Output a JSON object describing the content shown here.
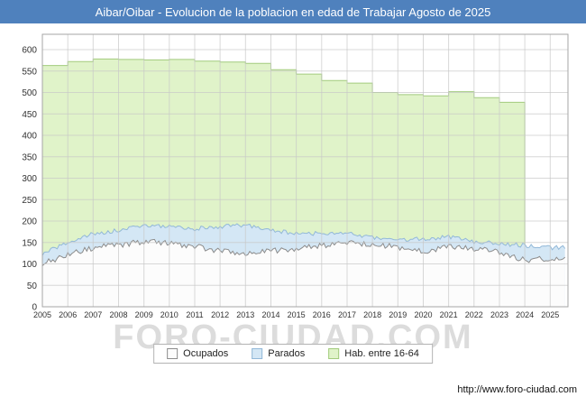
{
  "title_bar": {
    "text": "Aibar/Oibar - Evolucion de la poblacion en edad de Trabajar Agosto de 2025",
    "bg_color": "#4f81bd",
    "text_color": "#ffffff"
  },
  "watermark": "FORO-CIUDAD.COM",
  "footer": {
    "url": "http://www.foro-ciudad.com"
  },
  "legend": [
    {
      "label": "Ocupados",
      "fill": "#fcfcfc",
      "stroke": "#8c8c8c"
    },
    {
      "label": "Parados",
      "fill": "#d4e7f5",
      "stroke": "#92b8d8"
    },
    {
      "label": "Hab. entre 16-64",
      "fill": "#e0f3c9",
      "stroke": "#a2cb7d"
    }
  ],
  "chart_data": {
    "type": "area",
    "title": "Aibar/Oibar - Evolucion de la poblacion en edad de Trabajar Agosto de 2025",
    "xlabel": "",
    "ylabel": "",
    "xlim": [
      2005,
      2025.7
    ],
    "ylim": [
      0,
      600
    ],
    "y_tick_step": 50,
    "x_ticks": [
      2005,
      2006,
      2007,
      2008,
      2009,
      2010,
      2011,
      2012,
      2013,
      2014,
      2015,
      2016,
      2017,
      2018,
      2019,
      2020,
      2021,
      2022,
      2023,
      2024,
      2025
    ],
    "grid": true,
    "legend_position": "bottom-center",
    "series": [
      {
        "name": "Hab. entre 16-64",
        "slug": "hab-16-64",
        "render": "step-area",
        "anchor_years": [
          2005,
          2006,
          2007,
          2008,
          2009,
          2010,
          2011,
          2012,
          2013,
          2014,
          2015,
          2016,
          2017,
          2018,
          2019,
          2020,
          2021,
          2022,
          2023
        ],
        "values": [
          563,
          572,
          578,
          577,
          576,
          577,
          573,
          571,
          568,
          553,
          543,
          528,
          522,
          500,
          495,
          492,
          502,
          488,
          477
        ],
        "end_year": 2024.0,
        "end_drop": true,
        "jitter": 0,
        "seed": 3,
        "fill": "#e0f3c9",
        "stroke": "#a2cb7d"
      },
      {
        "name": "Parados",
        "slug": "parados",
        "render": "area",
        "anchor_years": [
          2005,
          2006,
          2007,
          2008,
          2009,
          2010,
          2011,
          2012,
          2013,
          2014,
          2015,
          2016,
          2017,
          2018,
          2019,
          2020,
          2021,
          2022,
          2023,
          2024,
          2025
        ],
        "values": [
          122,
          150,
          170,
          178,
          190,
          187,
          182,
          187,
          190,
          179,
          170,
          172,
          171,
          162,
          155,
          158,
          163,
          152,
          148,
          143,
          138
        ],
        "end_year": 2025.6,
        "end_drop": false,
        "jitter": 5,
        "seed": 7,
        "fill": "#d4e7f5",
        "stroke": "#92b8d8"
      },
      {
        "name": "Ocupados",
        "slug": "ocupados",
        "render": "area",
        "anchor_years": [
          2005,
          2006,
          2007,
          2008,
          2009,
          2010,
          2011,
          2012,
          2013,
          2014,
          2015,
          2016,
          2017,
          2018,
          2019,
          2020,
          2021,
          2022,
          2023,
          2024,
          2025
        ],
        "values": [
          100,
          122,
          138,
          143,
          152,
          148,
          141,
          130,
          126,
          131,
          136,
          142,
          150,
          146,
          140,
          128,
          140,
          136,
          126,
          110,
          112
        ],
        "end_year": 2025.6,
        "end_drop": false,
        "jitter": 7,
        "seed": 11,
        "fill": "#fcfcfc",
        "stroke": "#8c8c8c"
      }
    ]
  }
}
